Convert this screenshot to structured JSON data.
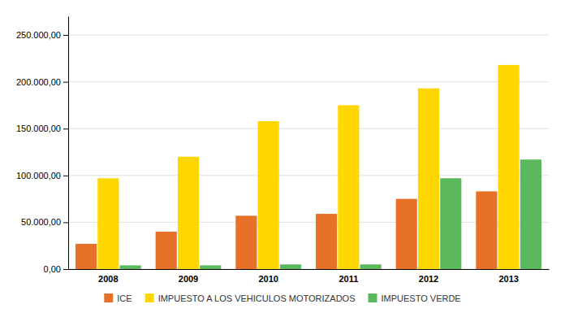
{
  "chart_data": {
    "type": "bar",
    "categories": [
      "2008",
      "2009",
      "2010",
      "2011",
      "2012",
      "2013"
    ],
    "series": [
      {
        "name": "ICE",
        "color": "#E8712A",
        "values": [
          27000,
          40000,
          57000,
          59000,
          75000,
          83000
        ]
      },
      {
        "name": "IMPUESTO A LOS VEHICULOS MOTORIZADOS",
        "color": "#FFD700",
        "values": [
          97000,
          120000,
          158000,
          175000,
          193000,
          218000
        ]
      },
      {
        "name": "IMPUESTO VERDE",
        "color": "#5CB85C",
        "values": [
          4000,
          4000,
          5000,
          5000,
          97000,
          117000
        ]
      }
    ],
    "ylim": [
      0,
      270000
    ],
    "yticks": [
      {
        "value": 0,
        "label": "0,00"
      },
      {
        "value": 50000,
        "label": "50.000,00"
      },
      {
        "value": 100000,
        "label": "100.000,00"
      },
      {
        "value": 150000,
        "label": "150.000,00"
      },
      {
        "value": 200000,
        "label": "200.000,00"
      },
      {
        "value": 250000,
        "label": "250.000,00"
      }
    ],
    "grid": true,
    "legend": "bottom"
  }
}
